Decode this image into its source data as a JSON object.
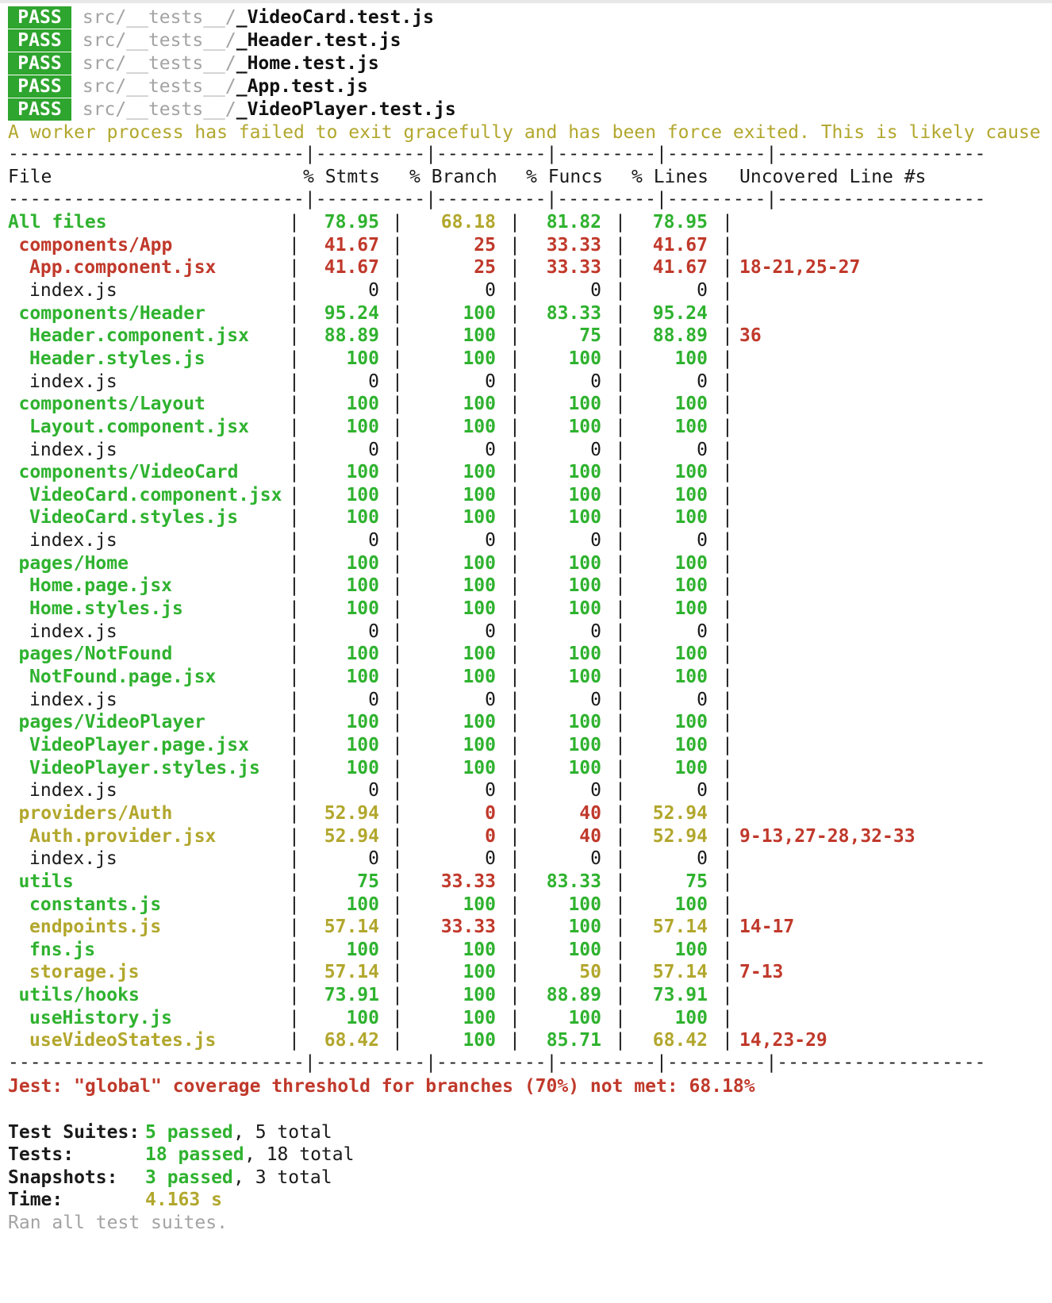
{
  "passes": [
    {
      "badge": "PASS",
      "dir": "src/__tests__/",
      "file": "_VideoCard.test.js"
    },
    {
      "badge": "PASS",
      "dir": "src/__tests__/",
      "file": "_Header.test.js"
    },
    {
      "badge": "PASS",
      "dir": "src/__tests__/",
      "file": "_Home.test.js"
    },
    {
      "badge": "PASS",
      "dir": "src/__tests__/",
      "file": "_App.test.js"
    },
    {
      "badge": "PASS",
      "dir": "src/__tests__/",
      "file": "_VideoPlayer.test.js"
    }
  ],
  "warning": "A worker process has failed to exit gracefully and has been force exited. This is likely cause",
  "separator": "---------------------------|----------|----------|---------|---------|-------------------",
  "headers": {
    "file": "File",
    "stmts": "% Stmts",
    "branch": "% Branch",
    "funcs": "% Funcs",
    "lines": "% Lines",
    "uncovered": "Uncovered Line #s"
  },
  "rows": [
    {
      "name": "All files",
      "indent": 0,
      "color": "g",
      "stmts": "78.95",
      "stmts_c": "g",
      "branch": "68.18",
      "branch_c": "y",
      "funcs": "81.82",
      "funcs_c": "g",
      "lines": "78.95",
      "lines_c": "g",
      "uncovered": "",
      "unc_c": "r"
    },
    {
      "name": "components/App",
      "indent": 1,
      "color": "r",
      "stmts": "41.67",
      "stmts_c": "r",
      "branch": "25",
      "branch_c": "r",
      "funcs": "33.33",
      "funcs_c": "r",
      "lines": "41.67",
      "lines_c": "r",
      "uncovered": "",
      "unc_c": "r"
    },
    {
      "name": "App.component.jsx",
      "indent": 2,
      "color": "r",
      "stmts": "41.67",
      "stmts_c": "r",
      "branch": "25",
      "branch_c": "r",
      "funcs": "33.33",
      "funcs_c": "r",
      "lines": "41.67",
      "lines_c": "r",
      "uncovered": "18-21,25-27",
      "unc_c": "r"
    },
    {
      "name": "index.js",
      "indent": 2,
      "color": "n",
      "stmts": "0",
      "stmts_c": "n",
      "branch": "0",
      "branch_c": "n",
      "funcs": "0",
      "funcs_c": "n",
      "lines": "0",
      "lines_c": "n",
      "uncovered": "",
      "unc_c": "r"
    },
    {
      "name": "components/Header",
      "indent": 1,
      "color": "g",
      "stmts": "95.24",
      "stmts_c": "g",
      "branch": "100",
      "branch_c": "g",
      "funcs": "83.33",
      "funcs_c": "g",
      "lines": "95.24",
      "lines_c": "g",
      "uncovered": "",
      "unc_c": "r"
    },
    {
      "name": "Header.component.jsx",
      "indent": 2,
      "color": "g",
      "stmts": "88.89",
      "stmts_c": "g",
      "branch": "100",
      "branch_c": "g",
      "funcs": "75",
      "funcs_c": "g",
      "lines": "88.89",
      "lines_c": "g",
      "uncovered": "36",
      "unc_c": "r"
    },
    {
      "name": "Header.styles.js",
      "indent": 2,
      "color": "g",
      "stmts": "100",
      "stmts_c": "g",
      "branch": "100",
      "branch_c": "g",
      "funcs": "100",
      "funcs_c": "g",
      "lines": "100",
      "lines_c": "g",
      "uncovered": "",
      "unc_c": "r"
    },
    {
      "name": "index.js",
      "indent": 2,
      "color": "n",
      "stmts": "0",
      "stmts_c": "n",
      "branch": "0",
      "branch_c": "n",
      "funcs": "0",
      "funcs_c": "n",
      "lines": "0",
      "lines_c": "n",
      "uncovered": "",
      "unc_c": "r"
    },
    {
      "name": "components/Layout",
      "indent": 1,
      "color": "g",
      "stmts": "100",
      "stmts_c": "g",
      "branch": "100",
      "branch_c": "g",
      "funcs": "100",
      "funcs_c": "g",
      "lines": "100",
      "lines_c": "g",
      "uncovered": "",
      "unc_c": "r"
    },
    {
      "name": "Layout.component.jsx",
      "indent": 2,
      "color": "g",
      "stmts": "100",
      "stmts_c": "g",
      "branch": "100",
      "branch_c": "g",
      "funcs": "100",
      "funcs_c": "g",
      "lines": "100",
      "lines_c": "g",
      "uncovered": "",
      "unc_c": "r"
    },
    {
      "name": "index.js",
      "indent": 2,
      "color": "n",
      "stmts": "0",
      "stmts_c": "n",
      "branch": "0",
      "branch_c": "n",
      "funcs": "0",
      "funcs_c": "n",
      "lines": "0",
      "lines_c": "n",
      "uncovered": "",
      "unc_c": "r"
    },
    {
      "name": "components/VideoCard",
      "indent": 1,
      "color": "g",
      "stmts": "100",
      "stmts_c": "g",
      "branch": "100",
      "branch_c": "g",
      "funcs": "100",
      "funcs_c": "g",
      "lines": "100",
      "lines_c": "g",
      "uncovered": "",
      "unc_c": "r"
    },
    {
      "name": "VideoCard.component.jsx",
      "indent": 2,
      "color": "g",
      "stmts": "100",
      "stmts_c": "g",
      "branch": "100",
      "branch_c": "g",
      "funcs": "100",
      "funcs_c": "g",
      "lines": "100",
      "lines_c": "g",
      "uncovered": "",
      "unc_c": "r"
    },
    {
      "name": "VideoCard.styles.js",
      "indent": 2,
      "color": "g",
      "stmts": "100",
      "stmts_c": "g",
      "branch": "100",
      "branch_c": "g",
      "funcs": "100",
      "funcs_c": "g",
      "lines": "100",
      "lines_c": "g",
      "uncovered": "",
      "unc_c": "r"
    },
    {
      "name": "index.js",
      "indent": 2,
      "color": "n",
      "stmts": "0",
      "stmts_c": "n",
      "branch": "0",
      "branch_c": "n",
      "funcs": "0",
      "funcs_c": "n",
      "lines": "0",
      "lines_c": "n",
      "uncovered": "",
      "unc_c": "r"
    },
    {
      "name": "pages/Home",
      "indent": 1,
      "color": "g",
      "stmts": "100",
      "stmts_c": "g",
      "branch": "100",
      "branch_c": "g",
      "funcs": "100",
      "funcs_c": "g",
      "lines": "100",
      "lines_c": "g",
      "uncovered": "",
      "unc_c": "r"
    },
    {
      "name": "Home.page.jsx",
      "indent": 2,
      "color": "g",
      "stmts": "100",
      "stmts_c": "g",
      "branch": "100",
      "branch_c": "g",
      "funcs": "100",
      "funcs_c": "g",
      "lines": "100",
      "lines_c": "g",
      "uncovered": "",
      "unc_c": "r"
    },
    {
      "name": "Home.styles.js",
      "indent": 2,
      "color": "g",
      "stmts": "100",
      "stmts_c": "g",
      "branch": "100",
      "branch_c": "g",
      "funcs": "100",
      "funcs_c": "g",
      "lines": "100",
      "lines_c": "g",
      "uncovered": "",
      "unc_c": "r"
    },
    {
      "name": "index.js",
      "indent": 2,
      "color": "n",
      "stmts": "0",
      "stmts_c": "n",
      "branch": "0",
      "branch_c": "n",
      "funcs": "0",
      "funcs_c": "n",
      "lines": "0",
      "lines_c": "n",
      "uncovered": "",
      "unc_c": "r"
    },
    {
      "name": "pages/NotFound",
      "indent": 1,
      "color": "g",
      "stmts": "100",
      "stmts_c": "g",
      "branch": "100",
      "branch_c": "g",
      "funcs": "100",
      "funcs_c": "g",
      "lines": "100",
      "lines_c": "g",
      "uncovered": "",
      "unc_c": "r"
    },
    {
      "name": "NotFound.page.jsx",
      "indent": 2,
      "color": "g",
      "stmts": "100",
      "stmts_c": "g",
      "branch": "100",
      "branch_c": "g",
      "funcs": "100",
      "funcs_c": "g",
      "lines": "100",
      "lines_c": "g",
      "uncovered": "",
      "unc_c": "r"
    },
    {
      "name": "index.js",
      "indent": 2,
      "color": "n",
      "stmts": "0",
      "stmts_c": "n",
      "branch": "0",
      "branch_c": "n",
      "funcs": "0",
      "funcs_c": "n",
      "lines": "0",
      "lines_c": "n",
      "uncovered": "",
      "unc_c": "r"
    },
    {
      "name": "pages/VideoPlayer",
      "indent": 1,
      "color": "g",
      "stmts": "100",
      "stmts_c": "g",
      "branch": "100",
      "branch_c": "g",
      "funcs": "100",
      "funcs_c": "g",
      "lines": "100",
      "lines_c": "g",
      "uncovered": "",
      "unc_c": "r"
    },
    {
      "name": "VideoPlayer.page.jsx",
      "indent": 2,
      "color": "g",
      "stmts": "100",
      "stmts_c": "g",
      "branch": "100",
      "branch_c": "g",
      "funcs": "100",
      "funcs_c": "g",
      "lines": "100",
      "lines_c": "g",
      "uncovered": "",
      "unc_c": "r"
    },
    {
      "name": "VideoPlayer.styles.js",
      "indent": 2,
      "color": "g",
      "stmts": "100",
      "stmts_c": "g",
      "branch": "100",
      "branch_c": "g",
      "funcs": "100",
      "funcs_c": "g",
      "lines": "100",
      "lines_c": "g",
      "uncovered": "",
      "unc_c": "r"
    },
    {
      "name": "index.js",
      "indent": 2,
      "color": "n",
      "stmts": "0",
      "stmts_c": "n",
      "branch": "0",
      "branch_c": "n",
      "funcs": "0",
      "funcs_c": "n",
      "lines": "0",
      "lines_c": "n",
      "uncovered": "",
      "unc_c": "r"
    },
    {
      "name": "providers/Auth",
      "indent": 1,
      "color": "y",
      "stmts": "52.94",
      "stmts_c": "y",
      "branch": "0",
      "branch_c": "r",
      "funcs": "40",
      "funcs_c": "r",
      "lines": "52.94",
      "lines_c": "y",
      "uncovered": "",
      "unc_c": "r"
    },
    {
      "name": "Auth.provider.jsx",
      "indent": 2,
      "color": "y",
      "stmts": "52.94",
      "stmts_c": "y",
      "branch": "0",
      "branch_c": "r",
      "funcs": "40",
      "funcs_c": "r",
      "lines": "52.94",
      "lines_c": "y",
      "uncovered": "9-13,27-28,32-33",
      "unc_c": "r"
    },
    {
      "name": "index.js",
      "indent": 2,
      "color": "n",
      "stmts": "0",
      "stmts_c": "n",
      "branch": "0",
      "branch_c": "n",
      "funcs": "0",
      "funcs_c": "n",
      "lines": "0",
      "lines_c": "n",
      "uncovered": "",
      "unc_c": "r"
    },
    {
      "name": "utils",
      "indent": 1,
      "color": "g",
      "stmts": "75",
      "stmts_c": "g",
      "branch": "33.33",
      "branch_c": "r",
      "funcs": "83.33",
      "funcs_c": "g",
      "lines": "75",
      "lines_c": "g",
      "uncovered": "",
      "unc_c": "r"
    },
    {
      "name": "constants.js",
      "indent": 2,
      "color": "g",
      "stmts": "100",
      "stmts_c": "g",
      "branch": "100",
      "branch_c": "g",
      "funcs": "100",
      "funcs_c": "g",
      "lines": "100",
      "lines_c": "g",
      "uncovered": "",
      "unc_c": "r"
    },
    {
      "name": "endpoints.js",
      "indent": 2,
      "color": "y",
      "stmts": "57.14",
      "stmts_c": "y",
      "branch": "33.33",
      "branch_c": "r",
      "funcs": "100",
      "funcs_c": "g",
      "lines": "57.14",
      "lines_c": "y",
      "uncovered": "14-17",
      "unc_c": "r"
    },
    {
      "name": "fns.js",
      "indent": 2,
      "color": "g",
      "stmts": "100",
      "stmts_c": "g",
      "branch": "100",
      "branch_c": "g",
      "funcs": "100",
      "funcs_c": "g",
      "lines": "100",
      "lines_c": "g",
      "uncovered": "",
      "unc_c": "r"
    },
    {
      "name": "storage.js",
      "indent": 2,
      "color": "y",
      "stmts": "57.14",
      "stmts_c": "y",
      "branch": "100",
      "branch_c": "g",
      "funcs": "50",
      "funcs_c": "y",
      "lines": "57.14",
      "lines_c": "y",
      "uncovered": "7-13",
      "unc_c": "r"
    },
    {
      "name": "utils/hooks",
      "indent": 1,
      "color": "g",
      "stmts": "73.91",
      "stmts_c": "g",
      "branch": "100",
      "branch_c": "g",
      "funcs": "88.89",
      "funcs_c": "g",
      "lines": "73.91",
      "lines_c": "g",
      "uncovered": "",
      "unc_c": "r"
    },
    {
      "name": "useHistory.js",
      "indent": 2,
      "color": "g",
      "stmts": "100",
      "stmts_c": "g",
      "branch": "100",
      "branch_c": "g",
      "funcs": "100",
      "funcs_c": "g",
      "lines": "100",
      "lines_c": "g",
      "uncovered": "",
      "unc_c": "r"
    },
    {
      "name": "useVideoStates.js",
      "indent": 2,
      "color": "y",
      "stmts": "68.42",
      "stmts_c": "y",
      "branch": "100",
      "branch_c": "g",
      "funcs": "85.71",
      "funcs_c": "g",
      "lines": "68.42",
      "lines_c": "y",
      "uncovered": "14,23-29",
      "unc_c": "r"
    }
  ],
  "threshold_error": "Jest: \"global\" coverage threshold for branches (70%) not met: 68.18%",
  "summary": [
    {
      "label": "Test Suites:",
      "value": "5 passed",
      "rest": ", 5 total"
    },
    {
      "label": "Tests:",
      "value": "18 passed",
      "rest": ", 18 total"
    },
    {
      "label": "Snapshots:",
      "value": "3 passed",
      "rest": ", 3 total"
    },
    {
      "label": "Time:",
      "value": "4.163 s",
      "rest": ""
    }
  ],
  "footer": "Ran all test suites."
}
